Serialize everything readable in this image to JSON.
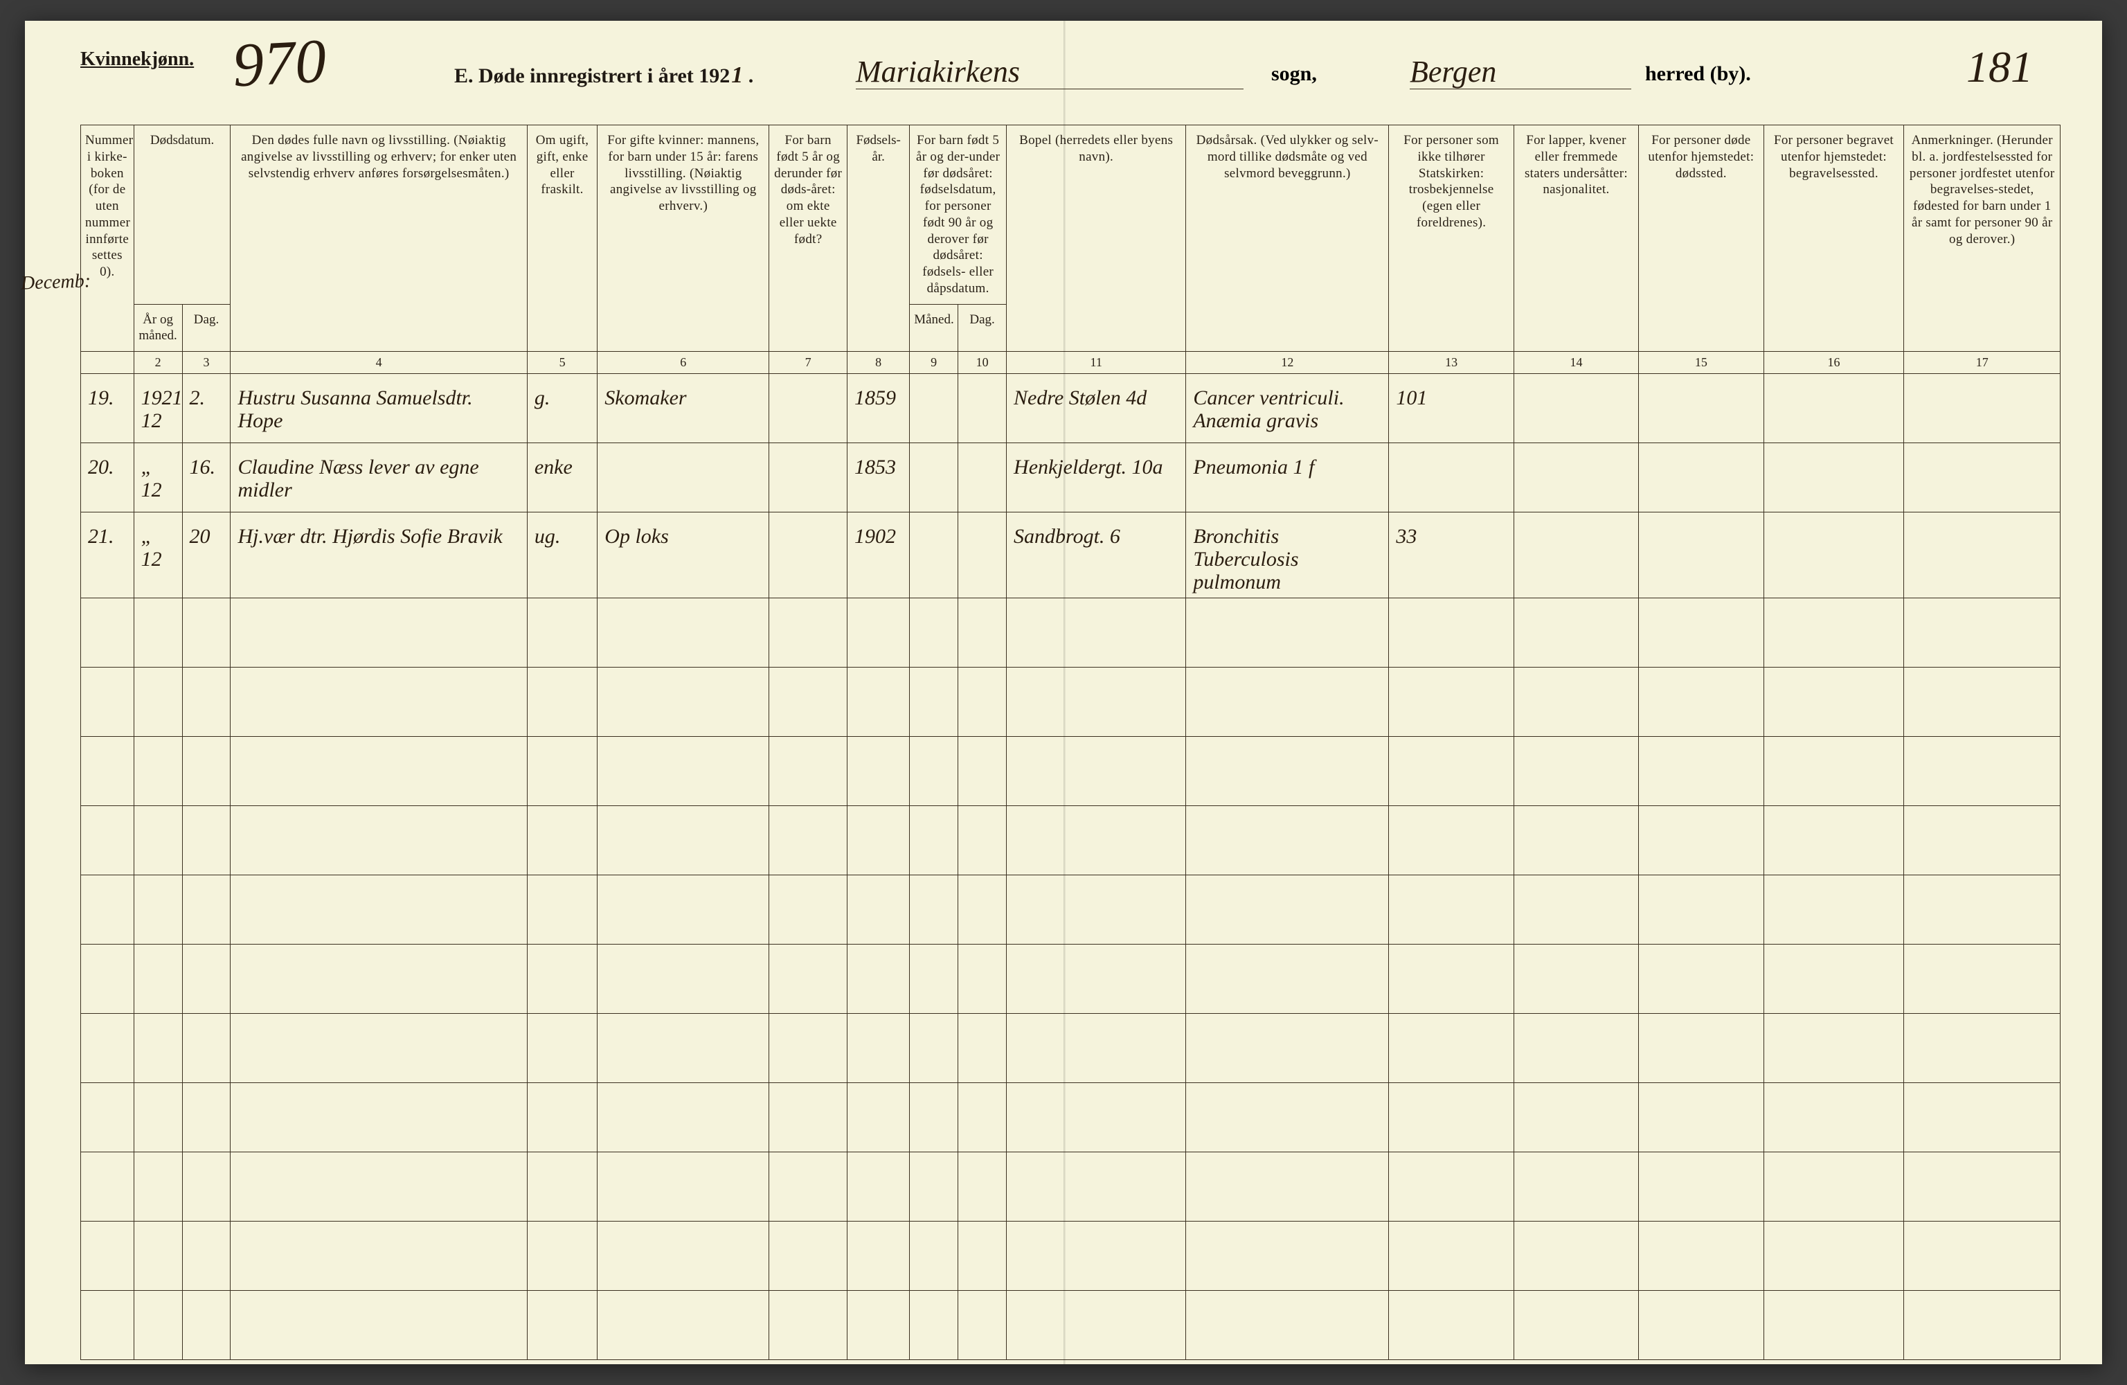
{
  "header": {
    "gender_label": "Kvinnekjønn.",
    "blue_number": "970",
    "form_title_prefix": "E.  Døde innregistrert i året 192",
    "form_year_last_digit": "1",
    "parish_script": "Mariakirkens",
    "sogn_label": "sogn,",
    "district_script": "Bergen",
    "herred_label": "herred (by).",
    "page_number_script": "181",
    "colors": {
      "paper": "#f5f3dc",
      "ink": "#2a1d10",
      "rule": "#3b3020",
      "blue_pencil": "#1b5d9e"
    }
  },
  "margin_note": "Decemb:",
  "columns": {
    "1": "Nummer i kirke-boken (for de uten nummer innførte settes 0).",
    "2_group": "Dødsdatum.",
    "2": "År og måned.",
    "3": "Dag.",
    "4": "Den dødes fulle navn og livsstilling. (Nøiaktig angivelse av livsstilling og erhverv; for enker uten selvstendig erhverv anføres forsørgelsesmåten.)",
    "5": "Om ugift, gift, enke eller fraskilt.",
    "6": "For gifte kvinner: mannens, for barn under 15 år: farens livsstilling. (Nøiaktig angivelse av livsstilling og erhverv.)",
    "7": "For barn født 5 år og derunder før døds-året: om ekte eller uekte født?",
    "8": "Fødsels-år.",
    "9_group": "For barn født 5 år og der-under før dødsåret: fødselsdatum, for personer født 90 år og derover før dødsåret: fødsels- eller dåpsdatum.",
    "9": "Måned.",
    "10": "Dag.",
    "11": "Bopel (herredets eller byens navn).",
    "12": "Dødsårsak. (Ved ulykker og selv-mord tillike dødsmåte og ved selvmord beveggrunn.)",
    "13": "For personer som ikke tilhører Statskirken: trosbekjennelse (egen eller foreldrenes).",
    "14": "For lapper, kvener eller fremmede staters undersåtter: nasjonalitet.",
    "15": "For personer døde utenfor hjemstedet: dødssted.",
    "16": "For personer begravet utenfor hjemstedet: begravelsessted.",
    "17": "Anmerkninger. (Herunder bl. a. jordfestelsessted for personer jordfestet utenfor begravelses-stedet, fødested for barn under 1 år samt for personer 90 år og derover.)"
  },
  "colnums": [
    "",
    "2",
    "3",
    "4",
    "5",
    "6",
    "7",
    "8",
    "9",
    "10",
    "11",
    "12",
    "13",
    "14",
    "15",
    "16",
    "17"
  ],
  "rows": [
    {
      "c1": "19.",
      "c2": "1921\n12",
      "c3": "2.",
      "c4": "Hustru Susanna Samuelsdtr. Hope",
      "c5": "g.",
      "c6": "Skomaker",
      "c7": "",
      "c8": "1859",
      "c9": "",
      "c10": "",
      "c11": "Nedre Stølen 4d",
      "c12": "Cancer ventriculi. Anæmia gravis",
      "c13": "101",
      "c14": "",
      "c15": "",
      "c16": "",
      "c17": ""
    },
    {
      "c1": "20.",
      "c2": "„\n12",
      "c3": "16.",
      "c4": "Claudine Næss  lever av egne midler",
      "c5": "enke",
      "c6": "",
      "c7": "",
      "c8": "1853",
      "c9": "",
      "c10": "",
      "c11": "Henkjeldergt. 10a",
      "c12": "Pneumonia 1 f",
      "c13": "",
      "c14": "",
      "c15": "",
      "c16": "",
      "c17": ""
    },
    {
      "c1": "21.",
      "c2": "„\n12",
      "c3": "20",
      "c4": "Hj.vær dtr. Hjørdis Sofie Bravik",
      "c5": "ug.",
      "c6": "Op loks",
      "c7": "",
      "c8": "1902",
      "c9": "",
      "c10": "",
      "c11": "Sandbrogt. 6",
      "c12": "Bronchitis Tuberculosis pulmonum",
      "c13": "33",
      "c14": "",
      "c15": "",
      "c16": "",
      "c17": ""
    }
  ],
  "empty_row_count": 11
}
